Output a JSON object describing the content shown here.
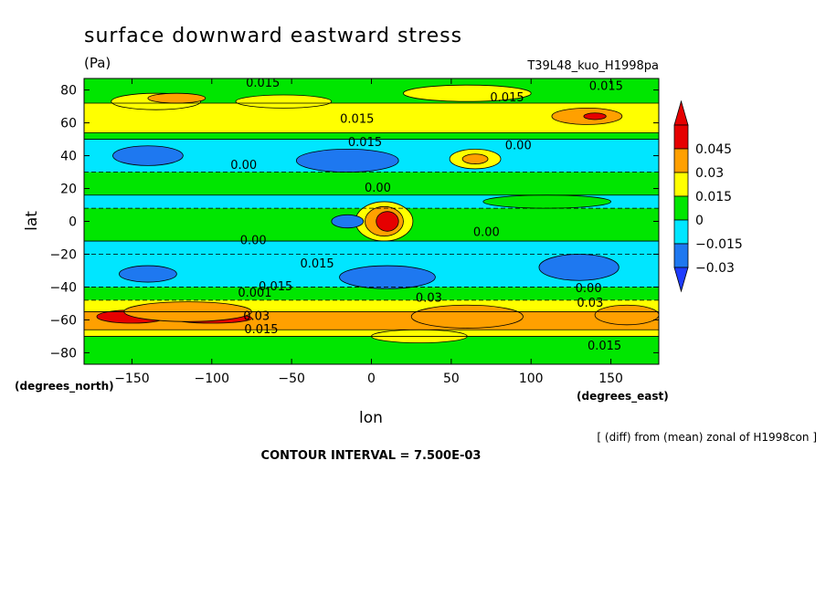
{
  "chart_data": {
    "type": "heatmap",
    "title": "surface downward eastward stress",
    "units": "(Pa)",
    "run_label": "T39L48_kuo_H1998pa",
    "xlabel": "lon",
    "ylabel": "lat",
    "x_unit_label": "(degrees_east)",
    "y_unit_label": "(degrees_north)",
    "xlim": [
      -180,
      180
    ],
    "ylim": [
      -87,
      87
    ],
    "x_ticks": [
      -150,
      -100,
      -50,
      0,
      50,
      100,
      150
    ],
    "y_ticks": [
      -80,
      -60,
      -40,
      -20,
      0,
      20,
      40,
      60,
      80
    ],
    "x_tick_labels": [
      "−150",
      "−100",
      "−50",
      "0",
      "50",
      "100",
      "150"
    ],
    "y_tick_labels": [
      "−80",
      "−60",
      "−40",
      "−20",
      "0",
      "20",
      "40",
      "60",
      "80"
    ],
    "note": "[ (diff) from (mean) zonal of H1998con ]",
    "contour_interval_text": "CONTOUR INTERVAL = 7.500E-03",
    "contour_interval": 0.0075,
    "colorbar": {
      "levels": [
        -0.03,
        -0.015,
        0,
        0.015,
        0.03,
        0.045
      ],
      "labels": [
        "−0.03",
        "−0.015",
        "0",
        "0.015",
        "0.03",
        "0.045"
      ],
      "colors": [
        "#1e78f0",
        "#00e6ff",
        "#00e600",
        "#ffff00",
        "#ffa000",
        "#e60000"
      ],
      "underflow_color": "#1e3cff",
      "overflow_color": "#e60000"
    },
    "bands": [
      {
        "lat_min": 72,
        "lat_max": 87,
        "value": 0.0,
        "class": 2
      },
      {
        "lat_min": 54,
        "lat_max": 72,
        "value": 0.015,
        "class": 3
      },
      {
        "lat_min": 50,
        "lat_max": 54,
        "value": 0.0,
        "class": 2
      },
      {
        "lat_min": 30,
        "lat_max": 50,
        "value": -0.015,
        "class": 1
      },
      {
        "lat_min": 16,
        "lat_max": 30,
        "value": 0.0,
        "class": 2
      },
      {
        "lat_min": 8,
        "lat_max": 16,
        "value": -0.015,
        "class": 1
      },
      {
        "lat_min": -12,
        "lat_max": 8,
        "value": 0.0,
        "class": 2
      },
      {
        "lat_min": -20,
        "lat_max": -12,
        "value": -0.015,
        "class": 1
      },
      {
        "lat_min": -40,
        "lat_max": -20,
        "value": -0.015,
        "class": 1
      },
      {
        "lat_min": -48,
        "lat_max": -40,
        "value": 0.0,
        "class": 2
      },
      {
        "lat_min": -55,
        "lat_max": -48,
        "value": 0.015,
        "class": 3
      },
      {
        "lat_min": -66,
        "lat_max": -55,
        "value": 0.03,
        "class": 4
      },
      {
        "lat_min": -70,
        "lat_max": -66,
        "value": 0.015,
        "class": 3
      },
      {
        "lat_min": -87,
        "lat_max": -70,
        "value": 0.0,
        "class": 2
      }
    ],
    "blobs": [
      {
        "lon": -135,
        "lat": 73,
        "rlon": 28,
        "rlat": 5,
        "class": 3
      },
      {
        "lon": -55,
        "lat": 73,
        "rlon": 30,
        "rlat": 4,
        "class": 3
      },
      {
        "lon": 60,
        "lat": 78,
        "rlon": 40,
        "rlat": 5,
        "class": 3
      },
      {
        "lon": -122,
        "lat": 75,
        "rlon": 18,
        "rlat": 3,
        "class": 4
      },
      {
        "lon": 135,
        "lat": 64,
        "rlon": 22,
        "rlat": 5,
        "class": 4
      },
      {
        "lon": 140,
        "lat": 64,
        "rlon": 7,
        "rlat": 2,
        "class": 5
      },
      {
        "lon": 65,
        "lat": 38,
        "rlon": 16,
        "rlat": 6,
        "class": 3
      },
      {
        "lon": 65,
        "lat": 38,
        "rlon": 8,
        "rlat": 3,
        "class": 4
      },
      {
        "lon": -140,
        "lat": 40,
        "rlon": 22,
        "rlat": 6,
        "class": 0
      },
      {
        "lon": -15,
        "lat": 37,
        "rlon": 32,
        "rlat": 7,
        "class": 0
      },
      {
        "lon": 110,
        "lat": 12,
        "rlon": 40,
        "rlat": 4,
        "class": 2
      },
      {
        "lon": 8,
        "lat": 0,
        "rlon": 18,
        "rlat": 12,
        "class": 3
      },
      {
        "lon": 8,
        "lat": 0,
        "rlon": 12,
        "rlat": 9,
        "class": 4
      },
      {
        "lon": 10,
        "lat": 0,
        "rlon": 7,
        "rlat": 6,
        "class": 5
      },
      {
        "lon": -15,
        "lat": 0,
        "rlon": 10,
        "rlat": 4,
        "class": 0
      },
      {
        "lon": -140,
        "lat": -32,
        "rlon": 18,
        "rlat": 5,
        "class": 0
      },
      {
        "lon": 10,
        "lat": -34,
        "rlon": 30,
        "rlat": 7,
        "class": 0
      },
      {
        "lon": 130,
        "lat": -28,
        "rlon": 25,
        "rlat": 8,
        "class": 0
      },
      {
        "lon": -150,
        "lat": -58,
        "rlon": 22,
        "rlat": 4,
        "class": 5
      },
      {
        "lon": -100,
        "lat": -59,
        "rlon": 25,
        "rlat": 3,
        "class": 5
      },
      {
        "lon": -115,
        "lat": -55,
        "rlon": 40,
        "rlat": 6,
        "class": 4
      },
      {
        "lon": 60,
        "lat": -58,
        "rlon": 35,
        "rlat": 7,
        "class": 4
      },
      {
        "lon": 160,
        "lat": -57,
        "rlon": 20,
        "rlat": 6,
        "class": 4
      },
      {
        "lon": 30,
        "lat": -70,
        "rlon": 30,
        "rlat": 4,
        "class": 3
      }
    ],
    "contour_labels": [
      {
        "text": "0.015",
        "lon": -68,
        "lat": 82
      },
      {
        "text": "0.015",
        "lon": 85,
        "lat": 73
      },
      {
        "text": "0.015",
        "lon": 147,
        "lat": 80
      },
      {
        "text": "0.015",
        "lon": -9,
        "lat": 60
      },
      {
        "text": "0.015",
        "lon": -4,
        "lat": 46
      },
      {
        "text": "0.00",
        "lon": 92,
        "lat": 44
      },
      {
        "text": "0.00",
        "lon": -80,
        "lat": 32
      },
      {
        "text": "0.00",
        "lon": 4,
        "lat": 18
      },
      {
        "text": "0.00",
        "lon": -74,
        "lat": -14
      },
      {
        "text": "0.00",
        "lon": 72,
        "lat": -9
      },
      {
        "text": "0.015",
        "lon": -34,
        "lat": -28
      },
      {
        "text": "0.015",
        "lon": -60,
        "lat": -42
      },
      {
        "text": "0.001",
        "lon": -73,
        "lat": -46
      },
      {
        "text": "0.03",
        "lon": -72,
        "lat": -60
      },
      {
        "text": "0.015",
        "lon": -69,
        "lat": -68
      },
      {
        "text": "0.03",
        "lon": 36,
        "lat": -49
      },
      {
        "text": "0.00",
        "lon": 136,
        "lat": -43
      },
      {
        "text": "0.03",
        "lon": 137,
        "lat": -52
      },
      {
        "text": "0.015",
        "lon": 146,
        "lat": -78
      }
    ]
  }
}
